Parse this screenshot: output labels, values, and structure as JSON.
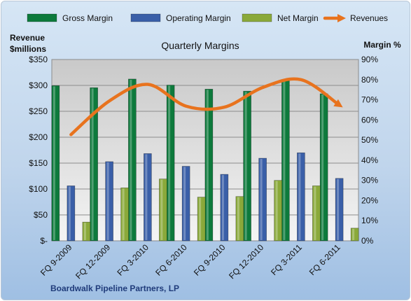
{
  "chart_data": {
    "type": "bar",
    "title": "Quarterly Margins",
    "footer": "Boardwalk Pipeline Partners, LP",
    "left_axis": {
      "title_line1": "Revenue",
      "title_line2": "$millions",
      "ylim": [
        0,
        350
      ],
      "ticks": [
        0,
        50,
        100,
        150,
        200,
        250,
        300,
        350
      ],
      "tick_labels": [
        "$-",
        "$50",
        "$100",
        "$150",
        "$200",
        "$250",
        "$300",
        "$350"
      ]
    },
    "right_axis": {
      "title": "Margin %",
      "ylim": [
        0,
        90
      ],
      "ticks": [
        0,
        10,
        20,
        30,
        40,
        50,
        60,
        70,
        80,
        90
      ],
      "tick_labels": [
        "0%",
        "10%",
        "20%",
        "30%",
        "40%",
        "50%",
        "60%",
        "70%",
        "80%",
        "90%"
      ]
    },
    "categories": [
      "FQ 9-2009",
      "FQ 12-2009",
      "FQ 3-2010",
      "FQ 6-2010",
      "FQ 9-2010",
      "FQ 12-2010",
      "FQ 3-2011",
      "FQ 6-2011"
    ],
    "series": [
      {
        "name": "Gross Margin",
        "kind": "bar",
        "axis": "right",
        "color": "#0d7a3c",
        "values": [
          77,
          76,
          80.3,
          77.3,
          75.3,
          74.3,
          80,
          73
        ]
      },
      {
        "name": "Operating Margin",
        "kind": "bar",
        "axis": "right",
        "color": "#3a5fa8",
        "values": [
          27.3,
          39.3,
          43.3,
          37,
          33,
          41,
          43.7,
          31
        ]
      },
      {
        "name": "Net Margin",
        "kind": "bar",
        "axis": "right",
        "color": "#8aa93a",
        "values": [
          9.3,
          26.3,
          30.7,
          21.7,
          22,
          30,
          27.3,
          6.3
        ]
      },
      {
        "name": "Revenues",
        "kind": "line",
        "axis": "left",
        "color": "#e8731e",
        "values": [
          205,
          270,
          302,
          260,
          258,
          296,
          311,
          262
        ]
      }
    ],
    "grid": true,
    "legend_position": "top"
  }
}
